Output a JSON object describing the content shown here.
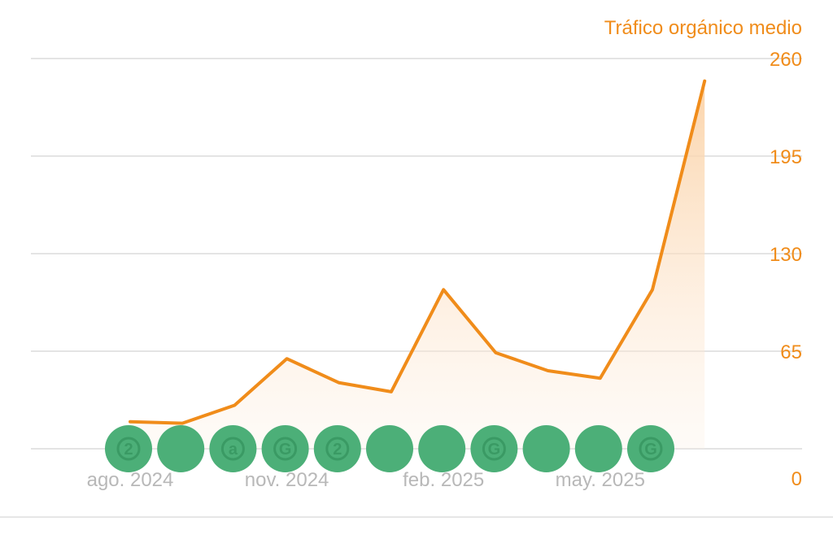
{
  "colors": {
    "line": "#f08c1a",
    "area_top": "#fbd7b0",
    "axis_text_right": "#f08c1a",
    "axis_text_bottom": "#b8b8b8",
    "grid": "#e4e4e4",
    "marker": "#4caf78",
    "marker_glyph": "#3a9a64"
  },
  "chart_data": {
    "type": "area",
    "ylabel": "Tráfico orgánico medio",
    "ylim": [
      0,
      260
    ],
    "yticks": [
      "0",
      "65",
      "130",
      "195",
      "260"
    ],
    "ytick_values": [
      0,
      65,
      130,
      195,
      260
    ],
    "grid": true,
    "xtick_labels": [
      "ago. 2024",
      "nov. 2024",
      "feb. 2025",
      "may. 2025"
    ],
    "xtick_index": [
      0,
      3,
      6,
      9
    ],
    "series": [
      {
        "values": [
          18,
          17,
          29,
          60,
          44,
          38,
          106,
          64,
          52,
          47,
          106,
          245
        ]
      }
    ],
    "markers": [
      {
        "index": 0,
        "icon": "digit-2-icon",
        "glyph": "2"
      },
      {
        "index": 1,
        "icon": "plain-circle-icon",
        "glyph": ""
      },
      {
        "index": 2,
        "icon": "letter-a-icon",
        "glyph": "a"
      },
      {
        "index": 3,
        "icon": "letter-g-icon",
        "glyph": "G"
      },
      {
        "index": 4,
        "icon": "digit-2-icon",
        "glyph": "2"
      },
      {
        "index": 5,
        "icon": "plain-circle-icon",
        "glyph": ""
      },
      {
        "index": 6,
        "icon": "plain-circle-icon",
        "glyph": ""
      },
      {
        "index": 7,
        "icon": "letter-g-icon",
        "glyph": "G"
      },
      {
        "index": 8,
        "icon": "plain-circle-icon",
        "glyph": ""
      },
      {
        "index": 9,
        "icon": "plain-circle-icon",
        "glyph": ""
      },
      {
        "index": 10,
        "icon": "letter-g-icon",
        "glyph": "G"
      }
    ]
  }
}
